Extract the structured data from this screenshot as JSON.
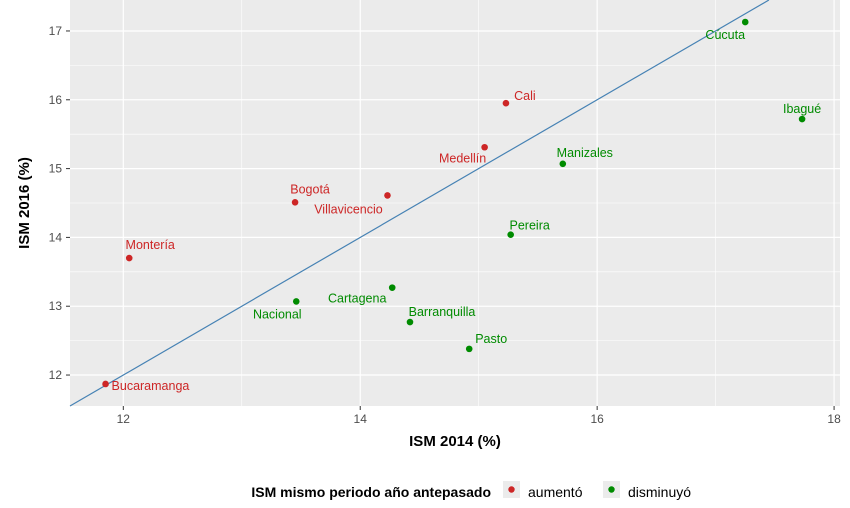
{
  "chart_data": {
    "type": "scatter",
    "xlabel": "ISM 2014 (%)",
    "ylabel": "ISM 2016 (%)",
    "xlim": [
      11.55,
      18.05
    ],
    "ylim": [
      11.55,
      17.45
    ],
    "xticks": [
      12,
      14,
      16,
      18
    ],
    "yticks": [
      12,
      13,
      14,
      15,
      16,
      17
    ],
    "grid": true,
    "reference_line": {
      "type": "identity",
      "color": "#4682b4"
    },
    "legend": {
      "title": "ISM mismo periodo año antepasado",
      "position": "bottom",
      "entries": [
        {
          "label": "aumentó",
          "color": "#cd2626"
        },
        {
          "label": "disminuyó",
          "color": "#008b00"
        }
      ]
    },
    "points": [
      {
        "label": "Cúcuta",
        "x": 17.25,
        "y": 17.13,
        "group": "disminuyó"
      },
      {
        "label": "Cali",
        "x": 15.23,
        "y": 15.95,
        "group": "aumentó"
      },
      {
        "label": "Ibagué",
        "x": 17.73,
        "y": 15.72,
        "group": "disminuyó"
      },
      {
        "label": "Medellín",
        "x": 15.05,
        "y": 15.31,
        "group": "aumentó"
      },
      {
        "label": "Manizales",
        "x": 15.71,
        "y": 15.07,
        "group": "disminuyó"
      },
      {
        "label": "Bogotá",
        "x": 13.45,
        "y": 14.51,
        "group": "aumentó"
      },
      {
        "label": "Villavicencio",
        "x": 14.23,
        "y": 14.61,
        "group": "aumentó"
      },
      {
        "label": "Pereira",
        "x": 15.27,
        "y": 14.04,
        "group": "disminuyó"
      },
      {
        "label": "Montería",
        "x": 12.05,
        "y": 13.7,
        "group": "aumentó"
      },
      {
        "label": "Cartagena",
        "x": 14.27,
        "y": 13.27,
        "group": "disminuyó"
      },
      {
        "label": "Nacional",
        "x": 13.46,
        "y": 13.07,
        "group": "disminuyó"
      },
      {
        "label": "Barranquilla",
        "x": 14.42,
        "y": 12.77,
        "group": "disminuyó"
      },
      {
        "label": "Pasto",
        "x": 14.92,
        "y": 12.38,
        "group": "disminuyó"
      },
      {
        "label": "Bucaramanga",
        "x": 11.85,
        "y": 11.87,
        "group": "aumentó"
      }
    ]
  }
}
